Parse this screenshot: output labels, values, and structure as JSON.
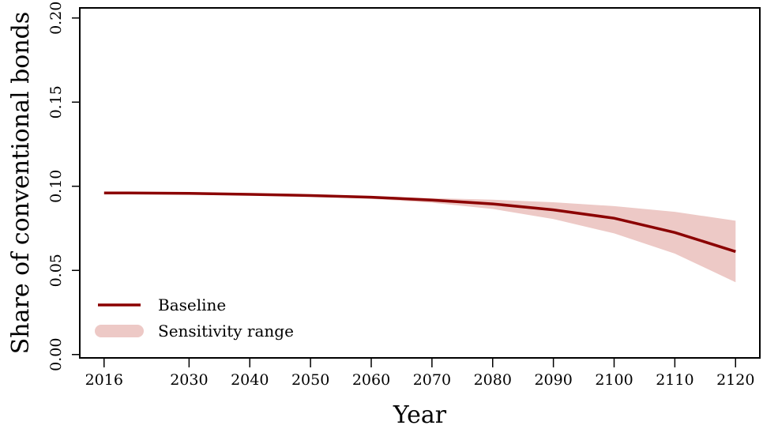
{
  "chart_data": {
    "type": "line",
    "title": "",
    "xlabel": "Year",
    "ylabel": "Share of conventional bonds",
    "xlim": [
      2012,
      2124
    ],
    "ylim": [
      -0.002,
      0.206
    ],
    "x_ticks": [
      2016,
      2030,
      2040,
      2050,
      2060,
      2070,
      2080,
      2090,
      2100,
      2110,
      2120
    ],
    "y_ticks": [
      0.0,
      0.05,
      0.1,
      0.15,
      0.2
    ],
    "y_tick_labels": [
      "0.00",
      "0.05",
      "0.10",
      "0.15",
      "0.20"
    ],
    "grid": false,
    "legend_position": "bottom-left",
    "legend": [
      {
        "label": "Baseline",
        "kind": "line"
      },
      {
        "label": "Sensitivity range",
        "kind": "band"
      }
    ],
    "colors": {
      "baseline": "#8b0000",
      "band": "#edc9c6"
    },
    "series": [
      {
        "name": "Baseline",
        "x": [
          2016,
          2020,
          2030,
          2040,
          2050,
          2060,
          2070,
          2080,
          2090,
          2100,
          2110,
          2120
        ],
        "values": [
          0.096,
          0.096,
          0.0958,
          0.0952,
          0.0945,
          0.0935,
          0.0918,
          0.0895,
          0.086,
          0.081,
          0.0725,
          0.0612
        ]
      }
    ],
    "band": {
      "name": "Sensitivity range",
      "x": [
        2016,
        2020,
        2030,
        2040,
        2050,
        2060,
        2070,
        2080,
        2090,
        2100,
        2110,
        2120
      ],
      "lower": [
        0.096,
        0.096,
        0.0957,
        0.095,
        0.094,
        0.0925,
        0.0902,
        0.0865,
        0.0805,
        0.072,
        0.06,
        0.043
      ],
      "upper": [
        0.096,
        0.096,
        0.0959,
        0.0954,
        0.0948,
        0.094,
        0.093,
        0.092,
        0.0905,
        0.0882,
        0.0848,
        0.0795
      ]
    }
  }
}
